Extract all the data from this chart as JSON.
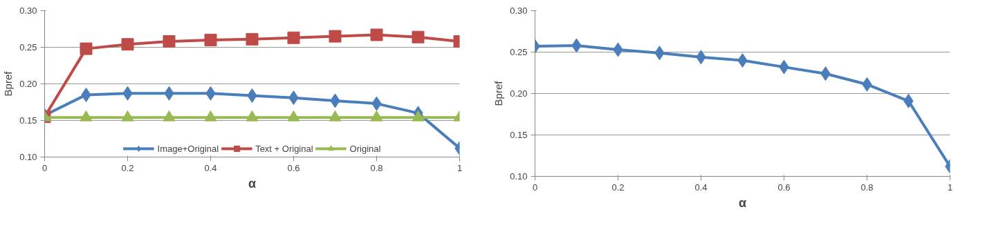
{
  "chart_data": [
    {
      "type": "line",
      "xlabel": "α",
      "ylabel": "Bpref",
      "x": [
        0,
        0.1,
        0.2,
        0.3,
        0.4,
        0.5,
        0.6,
        0.7,
        0.8,
        0.9,
        1
      ],
      "xlim": [
        0,
        1
      ],
      "xticks": [
        0,
        0.2,
        0.4,
        0.6,
        0.8,
        1
      ],
      "ylim": [
        0.1,
        0.3
      ],
      "yticks": [
        {
          "value": 0.1,
          "label": "0.10"
        },
        {
          "value": 0.15,
          "label": "0.15"
        },
        {
          "value": 0.2,
          "label": "0.20"
        },
        {
          "value": 0.25,
          "label": "0.25"
        },
        {
          "value": 0.3,
          "label": "0.30"
        }
      ],
      "grid": "y",
      "legend": "bottom",
      "series": [
        {
          "name": "Image+Original",
          "color": "#4a7ebb",
          "marker": "diamond",
          "values": [
            0.157,
            0.185,
            0.187,
            0.187,
            0.187,
            0.184,
            0.181,
            0.177,
            0.173,
            0.16,
            0.112
          ]
        },
        {
          "name": "Text + Original",
          "color": "#be4b48",
          "marker": "square",
          "values": [
            0.155,
            0.248,
            0.254,
            0.258,
            0.26,
            0.261,
            0.263,
            0.265,
            0.267,
            0.264,
            0.258
          ]
        },
        {
          "name": "Original",
          "color": "#98b954",
          "marker": "triangle",
          "values": [
            0.154,
            0.154,
            0.154,
            0.154,
            0.154,
            0.154,
            0.154,
            0.154,
            0.154,
            0.154,
            0.154
          ]
        }
      ]
    },
    {
      "type": "line",
      "xlabel": "α",
      "ylabel": "Bpref",
      "x": [
        0,
        0.1,
        0.2,
        0.3,
        0.4,
        0.5,
        0.6,
        0.7,
        0.8,
        0.9,
        1
      ],
      "xlim": [
        0,
        1
      ],
      "xticks": [
        0,
        0.2,
        0.4,
        0.6,
        0.8,
        1
      ],
      "ylim": [
        0.1,
        0.3
      ],
      "yticks": [
        {
          "value": 0.1,
          "label": "0.10"
        },
        {
          "value": 0.15,
          "label": "0.15"
        },
        {
          "value": 0.2,
          "label": "0.20"
        },
        {
          "value": 0.25,
          "label": "0.25"
        },
        {
          "value": 0.3,
          "label": "0.30"
        }
      ],
      "grid": "y",
      "legend": false,
      "series": [
        {
          "color": "#4a7ebb",
          "marker": "diamond",
          "values": [
            0.257,
            0.258,
            0.253,
            0.249,
            0.244,
            0.24,
            0.232,
            0.224,
            0.211,
            0.191,
            0.112
          ]
        }
      ]
    }
  ]
}
